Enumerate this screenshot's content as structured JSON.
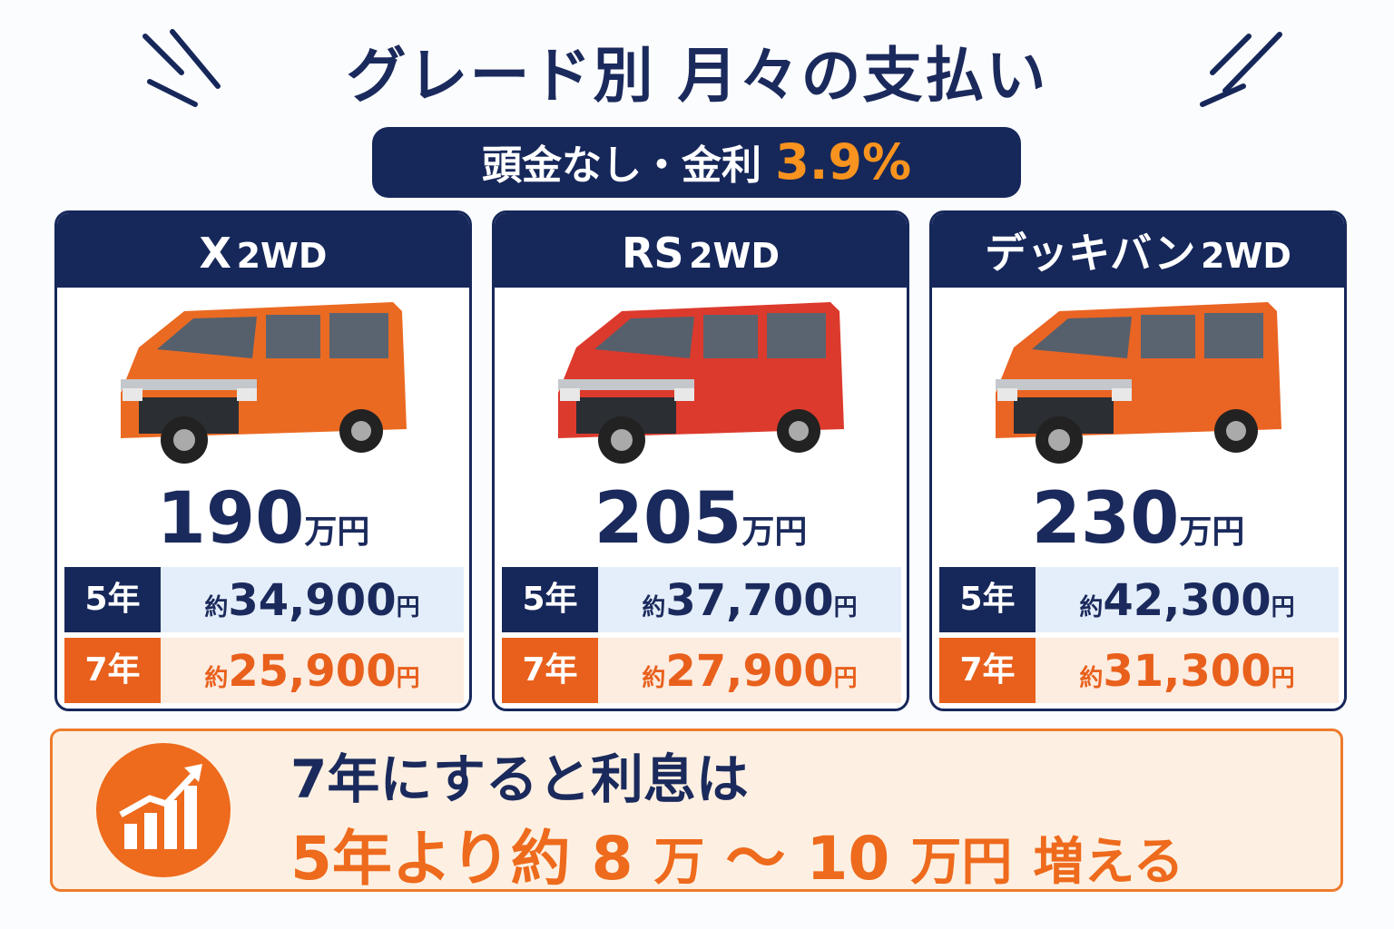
{
  "title": "グレード別 月々の支払い",
  "subtitle": {
    "text": "頭金なし・金利",
    "rate": "3.9%"
  },
  "cards": [
    {
      "grade": "X",
      "drive": "2WD",
      "price": "190",
      "price_unit": "万円",
      "plans": [
        {
          "term": "5年",
          "prefix": "約",
          "amount": "34,900",
          "unit": "円"
        },
        {
          "term": "7年",
          "prefix": "約",
          "amount": "25,900",
          "unit": "円"
        }
      ]
    },
    {
      "grade": "RS",
      "drive": "2WD",
      "price": "205",
      "price_unit": "万円",
      "plans": [
        {
          "term": "5年",
          "prefix": "約",
          "amount": "37,700",
          "unit": "円"
        },
        {
          "term": "7年",
          "prefix": "約",
          "amount": "27,900",
          "unit": "円"
        }
      ]
    },
    {
      "grade": "デッキバン",
      "drive": "2WD",
      "price": "230",
      "price_unit": "万円",
      "plans": [
        {
          "term": "5年",
          "prefix": "約",
          "amount": "42,300",
          "unit": "円"
        },
        {
          "term": "7年",
          "prefix": "約",
          "amount": "31,300",
          "unit": "円"
        }
      ]
    }
  ],
  "footer": {
    "line1": "7年にすると利息は",
    "line2": [
      "5年より約",
      "8",
      "万",
      "〜",
      "10",
      "万円",
      "増える"
    ]
  }
}
